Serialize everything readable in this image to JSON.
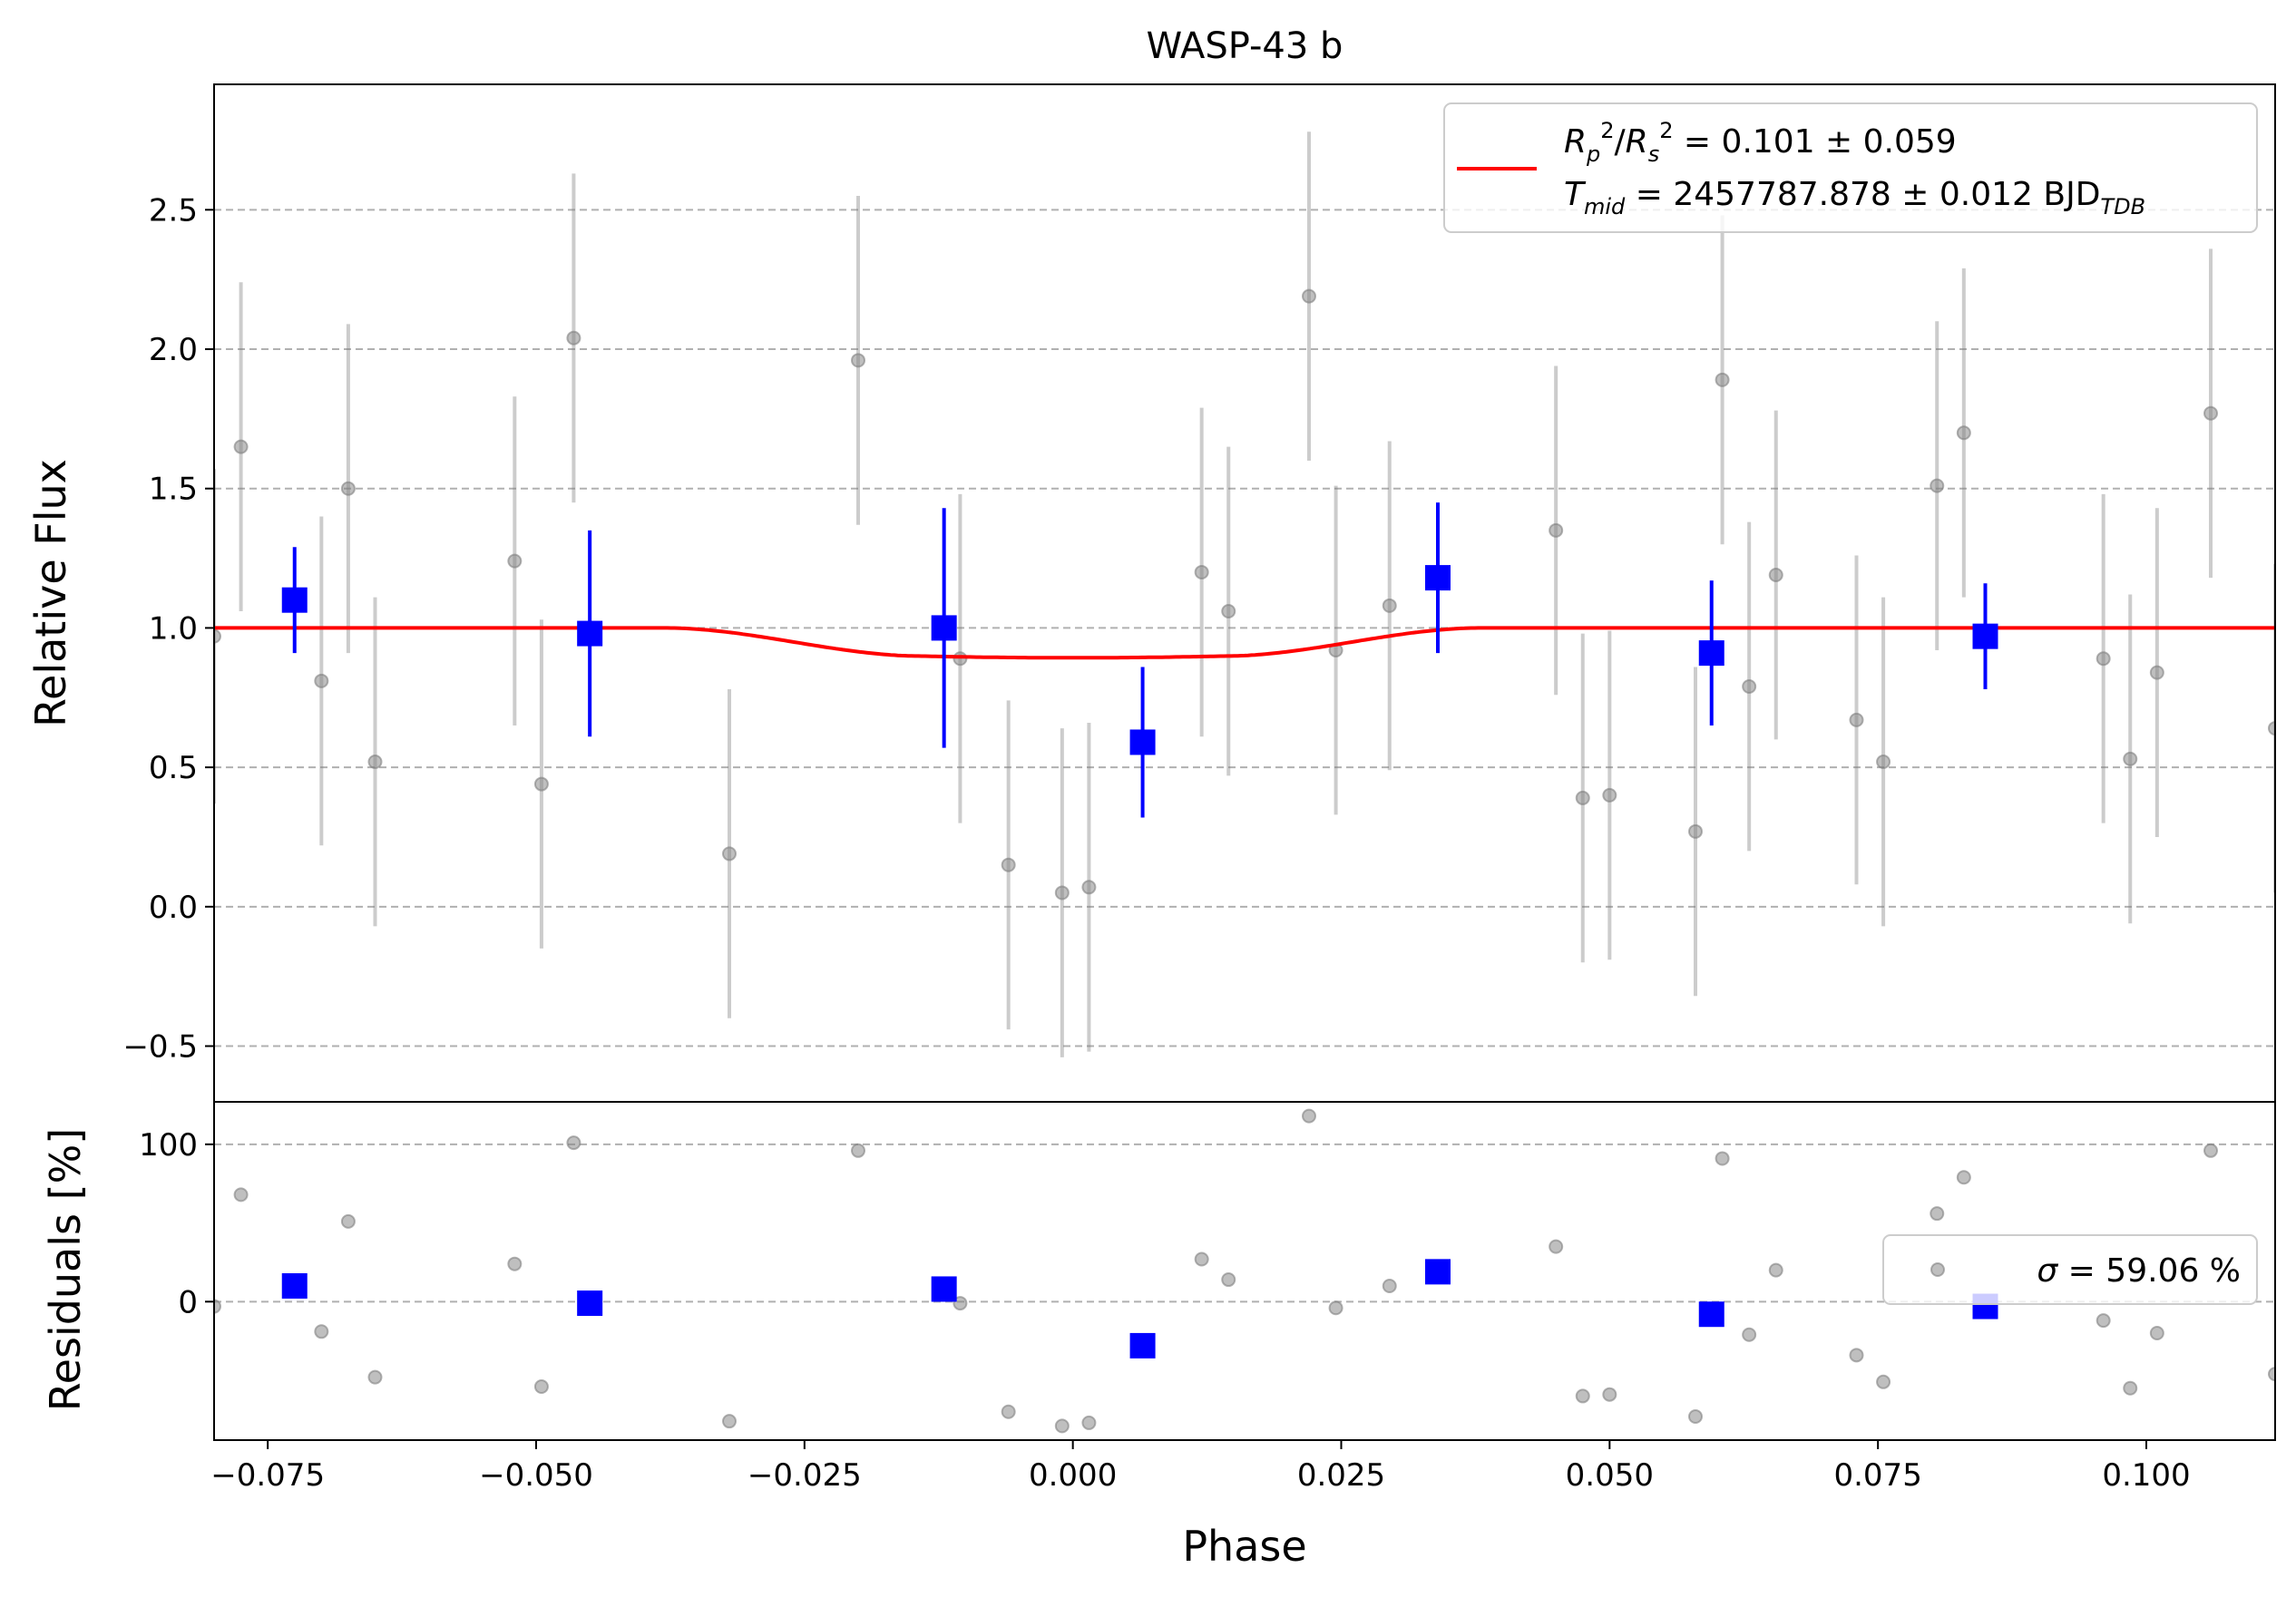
{
  "chart_data": [
    {
      "type": "scatter",
      "panel": "lightcurve",
      "title": "WASP-43 b",
      "xlabel": "",
      "ylabel": "Relative Flux",
      "xlim": [
        -0.08,
        0.112
      ],
      "ylim": [
        -0.7,
        2.95
      ],
      "grid": "y-dashed",
      "yticks": [
        -0.5,
        0.0,
        0.5,
        1.0,
        1.5,
        2.0,
        2.5
      ],
      "ytick_labels": [
        "−0.5",
        "0.0",
        "0.5",
        "1.0",
        "1.5",
        "2.0",
        "2.5"
      ],
      "legend": {
        "placement": "top-right",
        "line1_main": "R₂²/Rₛ²",
        "line1_sym": "R",
        "line1_sub_p": "p",
        "line1_sup": "2",
        "line1_sub_s": "s",
        "line1_value": " = 0.101 ± 0.059",
        "line2_sym": "T",
        "line2_sub": "mid",
        "line2_value": " = 2457787.878 ± 0.012 BJD",
        "line2_unit_sub": "TDB"
      },
      "model": {
        "name": "transit model",
        "color": "#ff0000",
        "depth": 0.101,
        "ingress_start": -0.038,
        "ingress_end": -0.014,
        "egress_start": 0.014,
        "egress_end": 0.038
      },
      "raw_points": {
        "color": "#808080",
        "x": [
          -0.08,
          -0.0775,
          -0.07,
          -0.0675,
          -0.065,
          -0.052,
          -0.0495,
          -0.0465,
          -0.032,
          -0.02,
          -0.0105,
          -0.006,
          -0.001,
          0.0015,
          0.012,
          0.0145,
          0.022,
          0.0245,
          0.0295,
          0.045,
          0.0475,
          0.05,
          0.058,
          0.0605,
          0.063,
          0.0655,
          0.073,
          0.0755,
          0.0805,
          0.083,
          0.096,
          0.0985,
          0.101,
          0.106,
          0.112
        ],
        "y": [
          0.97,
          1.65,
          0.81,
          1.5,
          0.52,
          1.24,
          0.44,
          2.04,
          0.19,
          1.96,
          0.89,
          0.15,
          0.05,
          0.07,
          1.2,
          1.06,
          2.19,
          0.92,
          1.08,
          1.35,
          0.39,
          0.4,
          0.27,
          1.89,
          0.79,
          1.19,
          0.67,
          0.52,
          1.51,
          1.7,
          0.89,
          0.53,
          0.84,
          1.77,
          0.64
        ],
        "yerr": [
          0.6,
          0.59,
          0.59,
          0.59,
          0.59,
          0.59,
          0.59,
          0.59,
          0.59,
          0.59,
          0.59,
          0.59,
          0.59,
          0.59,
          0.59,
          0.59,
          0.59,
          0.59,
          0.59,
          0.59,
          0.59,
          0.59,
          0.59,
          0.59,
          0.59,
          0.59,
          0.59,
          0.59,
          0.59,
          0.59,
          0.59,
          0.59,
          0.59,
          0.59,
          0.59
        ]
      },
      "binned_points": {
        "color": "#0000ff",
        "x": [
          -0.0725,
          -0.045,
          -0.012,
          0.0065,
          0.034,
          0.0595,
          0.085
        ],
        "y": [
          1.1,
          0.98,
          1.0,
          0.59,
          1.18,
          0.91,
          0.97
        ],
        "yerr": [
          0.19,
          0.37,
          0.43,
          0.27,
          0.27,
          0.26,
          0.19
        ]
      }
    },
    {
      "type": "scatter",
      "panel": "residuals",
      "xlabel": "Phase",
      "ylabel": "Residuals [%]",
      "xlim": [
        -0.08,
        0.112
      ],
      "ylim": [
        -88,
        127
      ],
      "grid": "y-dashed",
      "yticks": [
        0,
        100
      ],
      "ytick_labels": [
        "0",
        "100"
      ],
      "xticks": [
        -0.075,
        -0.05,
        -0.025,
        0.0,
        0.025,
        0.05,
        0.075,
        0.1
      ],
      "xtick_labels": [
        "−0.075",
        "−0.050",
        "−0.025",
        "0.000",
        "0.025",
        "0.050",
        "0.075",
        "0.100"
      ],
      "legend": {
        "placement": "right",
        "sigma_sym": "σ",
        "sigma_text": " = 59.06 %"
      },
      "raw_points": {
        "color": "#808080",
        "x": [
          -0.08,
          -0.0775,
          -0.07,
          -0.0675,
          -0.065,
          -0.052,
          -0.0495,
          -0.0465,
          -0.032,
          -0.02,
          -0.0105,
          -0.006,
          -0.001,
          0.0015,
          0.012,
          0.0145,
          0.022,
          0.0245,
          0.0295,
          0.045,
          0.0475,
          0.05,
          0.058,
          0.0605,
          0.063,
          0.0655,
          0.073,
          0.0755,
          0.0805,
          0.083,
          0.096,
          0.0985,
          0.101,
          0.106,
          0.112
        ],
        "y": [
          -3,
          68,
          -19,
          51,
          -48,
          24,
          -54,
          101,
          -76,
          96,
          -1,
          -70,
          -79,
          -77,
          27,
          14,
          118,
          -4,
          10,
          35,
          -60,
          -59,
          -73,
          91,
          -21,
          20,
          -34,
          -51,
          56,
          79,
          -12,
          -55,
          -20,
          96,
          -46
        ]
      },
      "binned_points": {
        "color": "#0000ff",
        "x": [
          -0.0725,
          -0.045,
          -0.012,
          0.0065,
          0.034,
          0.0595,
          0.085
        ],
        "y": [
          10,
          -1,
          8,
          -28,
          19,
          -8,
          -3
        ]
      }
    }
  ]
}
